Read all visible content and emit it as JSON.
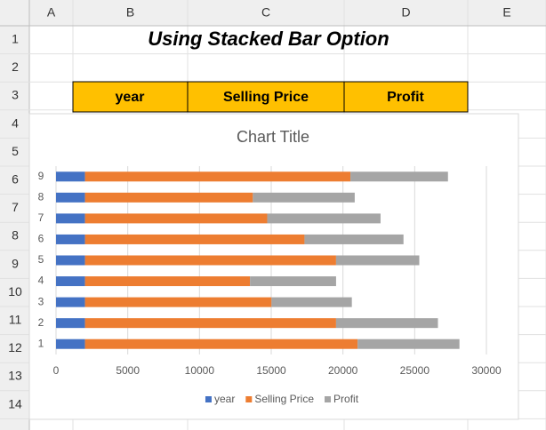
{
  "sheet": {
    "columns": [
      "A",
      "B",
      "C",
      "D",
      "E"
    ],
    "rows": [
      "1",
      "2",
      "3",
      "4",
      "5",
      "6",
      "7",
      "8",
      "9",
      "10",
      "11",
      "12",
      "13",
      "14"
    ],
    "title": "Using Stacked Bar Option",
    "headers": [
      "year",
      "Selling Price",
      "Profit"
    ]
  },
  "chart_data": {
    "type": "stacked-bar-horizontal",
    "title": "Chart Title",
    "categories": [
      "1",
      "2",
      "3",
      "4",
      "5",
      "6",
      "7",
      "8",
      "9"
    ],
    "series": [
      {
        "name": "year",
        "color": "#4472c4",
        "values": [
          2020,
          2020,
          2020,
          2020,
          2020,
          2020,
          2020,
          2020,
          2020
        ]
      },
      {
        "name": "Selling Price",
        "color": "#ed7d31",
        "values": [
          19000,
          17500,
          13000,
          11500,
          17500,
          15300,
          12700,
          11700,
          18500
        ]
      },
      {
        "name": "Profit",
        "color": "#a5a5a5",
        "values": [
          7100,
          7100,
          5600,
          6000,
          5800,
          6900,
          7900,
          7100,
          6800
        ]
      }
    ],
    "xlim": [
      0,
      30000
    ],
    "xticks": [
      0,
      5000,
      10000,
      15000,
      20000,
      25000,
      30000
    ],
    "grid": true,
    "legend": "bottom"
  }
}
